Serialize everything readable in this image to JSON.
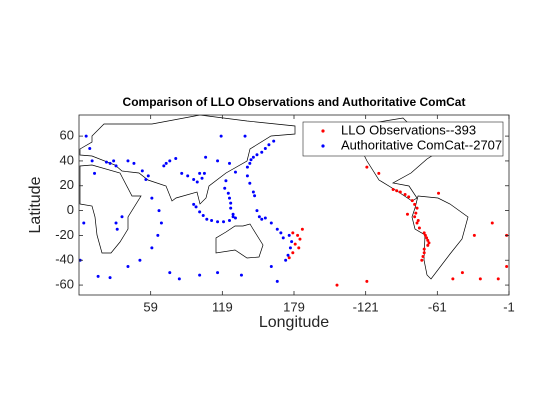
{
  "chart_data": {
    "type": "scatter",
    "title": "Comparison of LLO Observations and Authoritative ComCat",
    "x_label": "Longitude",
    "y_label": "Latitude",
    "xlim": [
      -1,
      359
    ],
    "ylim": [
      -68,
      77
    ],
    "xticks": [
      59,
      119,
      179,
      {
        "value": 239,
        "label": "-121"
      },
      {
        "value": 299,
        "label": "-61"
      },
      {
        "value": 359,
        "label": "-1"
      }
    ],
    "yticks": [
      -60,
      -40,
      -20,
      0,
      20,
      40,
      60
    ],
    "legend": "upper right",
    "series": [
      {
        "name": "LLO Observations--393",
        "color": "#ff0000",
        "x": [
          262,
          265,
          268,
          272,
          275,
          278,
          280,
          282,
          281,
          280,
          282,
          284,
          288,
          290,
          291,
          291,
          288,
          288,
          287,
          286,
          289,
          292,
          283,
          274,
          250,
          240,
          300,
          330,
          335,
          320,
          312,
          357,
          350,
          178,
          182,
          184,
          180,
          183,
          178,
          186,
          175,
          240,
          215,
          345,
          357
        ],
        "y": [
          17,
          16,
          15,
          13,
          11,
          8,
          5,
          2,
          -2,
          -5,
          -10,
          -14,
          -18,
          -22,
          -24,
          -28,
          -31,
          -34,
          -37,
          -40,
          -20,
          -26,
          -8,
          -3,
          30,
          35,
          14,
          -20,
          -55,
          -50,
          -55,
          -45,
          -55,
          -18,
          -20,
          -23,
          -27,
          -30,
          -34,
          -15,
          -38,
          -57,
          -60,
          -10,
          -20
        ]
      },
      {
        "name": "Authoritative ComCat--2707",
        "color": "#0000ff",
        "x": [
          5,
          8,
          10,
          12,
          3,
          0,
          15,
          25,
          40,
          50,
          60,
          65,
          68,
          66,
          60,
          55,
          57,
          52,
          45,
          30,
          25,
          22,
          28,
          40,
          35,
          30,
          31,
          70,
          72,
          75,
          80,
          85,
          90,
          95,
          98,
          100,
          102,
          104,
          95,
          97,
          100,
          103,
          106,
          110,
          115,
          120,
          125,
          128,
          130,
          128,
          126,
          126,
          125,
          124,
          121,
          122,
          130,
          140,
          142,
          143,
          145,
          148,
          152,
          155,
          158,
          162,
          140,
          142,
          145,
          146,
          148,
          150,
          152,
          155,
          160,
          165,
          168,
          170,
          175,
          177,
          176,
          174,
          172,
          160,
          75,
          83,
          100,
          115,
          135,
          165,
          118,
          138,
          105,
          115,
          125
        ],
        "y": [
          60,
          50,
          40,
          30,
          -10,
          -40,
          -53,
          -54,
          -45,
          -40,
          -30,
          -20,
          -10,
          0,
          10,
          25,
          28,
          32,
          38,
          36,
          38,
          39,
          40,
          40,
          -5,
          -10,
          -15,
          36,
          38,
          40,
          42,
          30,
          28,
          25,
          23,
          30,
          26,
          30,
          5,
          3,
          -1,
          -4,
          -7,
          -8,
          -9,
          -9,
          -8,
          -5,
          -6,
          -3,
          2,
          6,
          10,
          14,
          18,
          24,
          31,
          35,
          38,
          41,
          43,
          45,
          47,
          50,
          53,
          56,
          28,
          22,
          15,
          12,
          0,
          -5,
          -7,
          -6,
          -10,
          -15,
          -18,
          -22,
          -20,
          -25,
          -30,
          -36,
          -40,
          -45,
          -50,
          -55,
          -52,
          -50,
          -52,
          -57,
          60,
          60,
          43,
          40,
          38
        ]
      }
    ]
  }
}
